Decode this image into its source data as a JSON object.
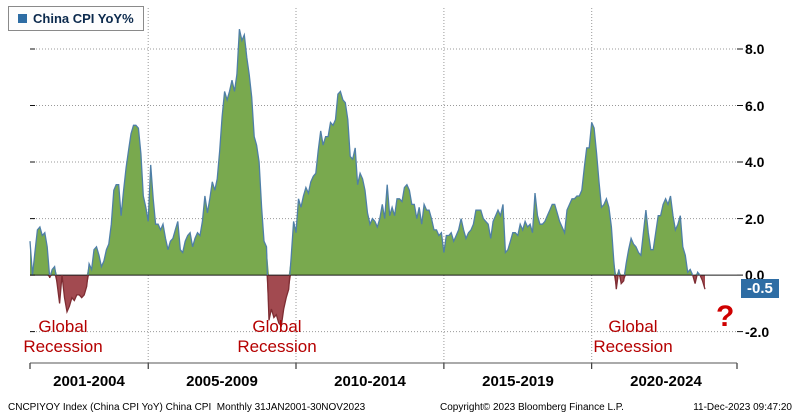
{
  "legend": {
    "label": "China CPI YoY%"
  },
  "annotations": {
    "global_recession": {
      "line1": "Global",
      "line2": "Recession"
    },
    "question_mark": "?"
  },
  "footer": {
    "left": "CNCPIYOY Index (China CPI YoY) China CPI  Monthly 31JAN2001-30NOV2023",
    "center": "Copyright© 2023 Bloomberg Finance L.P.",
    "right": "11-Dec-2023 09:47:20"
  },
  "chart_data": {
    "type": "area",
    "title": "China CPI YoY%",
    "xlabel": "",
    "ylabel": "",
    "grid": true,
    "legend_position": "top-left",
    "ylim": [
      -3.11,
      9.45
    ],
    "y_ticks": [
      8,
      6,
      4,
      2,
      0,
      -2
    ],
    "y_tick_labels": [
      "8.0",
      "6.0",
      "4.0",
      "2.0",
      "0.0",
      "-2.0"
    ],
    "x_domain": [
      "2001-01",
      "2024-12"
    ],
    "x_gridlines": [
      "2005-01",
      "2010-01",
      "2015-01",
      "2020-01"
    ],
    "x_axis_labels": [
      "2001-2004",
      "2005-2009",
      "2010-2014",
      "2015-2019",
      "2020-2024"
    ],
    "x_start": "2001-01",
    "x_end": "2023-11",
    "frequency": "monthly",
    "last_value": -0.5,
    "last_value_label": "-0.5",
    "colors": {
      "positive_fill": "#79a94e",
      "positive_line": "#4f7fa7",
      "negative_fill": "#a24a50",
      "negative_line": "#7e2d33",
      "accent_blue": "#2e6da4",
      "annotation_red": "#b50000"
    },
    "series": [
      {
        "name": "China CPI YoY%",
        "values": [
          1.2,
          0.0,
          0.8,
          1.6,
          1.7,
          1.4,
          1.5,
          1.0,
          -0.1,
          0.2,
          0.3,
          -0.3,
          -1.0,
          0.0,
          -0.8,
          -1.3,
          -1.1,
          -0.8,
          -0.9,
          -0.7,
          -0.7,
          -0.8,
          -0.7,
          -0.4,
          0.4,
          0.2,
          0.9,
          1.0,
          0.7,
          0.3,
          0.5,
          0.9,
          1.1,
          1.8,
          3.0,
          3.2,
          3.2,
          2.1,
          3.0,
          3.8,
          4.4,
          5.0,
          5.3,
          5.3,
          5.2,
          4.3,
          2.8,
          2.4,
          1.9,
          3.9,
          2.7,
          1.8,
          1.8,
          1.6,
          1.8,
          1.3,
          0.9,
          1.2,
          1.3,
          1.6,
          1.9,
          0.9,
          0.8,
          1.2,
          1.4,
          1.5,
          1.0,
          1.3,
          1.5,
          1.4,
          1.9,
          2.8,
          2.2,
          2.7,
          3.3,
          3.0,
          3.4,
          4.4,
          5.6,
          6.5,
          6.2,
          6.5,
          6.9,
          6.5,
          7.1,
          8.7,
          8.3,
          8.5,
          7.7,
          7.1,
          6.3,
          4.9,
          4.6,
          4.0,
          2.4,
          1.2,
          1.0,
          -1.6,
          -1.2,
          -1.5,
          -1.4,
          -1.7,
          -1.8,
          -1.2,
          -0.8,
          -0.5,
          0.6,
          1.9,
          1.5,
          2.7,
          2.4,
          2.8,
          3.1,
          2.9,
          3.3,
          3.5,
          3.6,
          4.4,
          5.1,
          4.6,
          4.9,
          4.9,
          5.4,
          5.3,
          5.5,
          6.4,
          6.5,
          6.2,
          6.1,
          5.5,
          4.2,
          4.1,
          4.5,
          3.2,
          3.6,
          3.4,
          3.0,
          2.2,
          1.8,
          2.0,
          1.9,
          1.7,
          2.0,
          2.5,
          2.0,
          3.2,
          2.1,
          2.4,
          2.1,
          2.7,
          2.7,
          2.6,
          3.1,
          3.2,
          3.0,
          2.5,
          2.5,
          2.0,
          2.4,
          1.8,
          2.5,
          2.3,
          2.3,
          2.0,
          1.6,
          1.6,
          1.4,
          1.5,
          0.8,
          1.4,
          1.4,
          1.5,
          1.2,
          1.4,
          1.6,
          2.0,
          1.6,
          1.3,
          1.5,
          1.6,
          1.8,
          2.3,
          2.3,
          2.3,
          2.0,
          1.9,
          1.8,
          1.3,
          1.9,
          2.1,
          2.3,
          2.1,
          2.5,
          0.8,
          0.9,
          1.2,
          1.5,
          1.5,
          1.4,
          1.8,
          1.6,
          1.9,
          1.7,
          1.8,
          1.5,
          2.9,
          2.1,
          1.8,
          1.8,
          1.9,
          2.1,
          2.3,
          2.5,
          2.5,
          2.2,
          1.9,
          1.7,
          1.5,
          2.3,
          2.5,
          2.7,
          2.7,
          2.8,
          2.8,
          3.0,
          3.8,
          4.5,
          4.5,
          5.4,
          5.2,
          4.3,
          3.3,
          2.4,
          2.5,
          2.7,
          2.4,
          1.7,
          0.5,
          -0.5,
          0.2,
          -0.3,
          -0.2,
          0.4,
          0.9,
          1.3,
          1.1,
          1.0,
          0.8,
          0.7,
          1.5,
          2.3,
          1.5,
          0.9,
          0.9,
          1.5,
          2.1,
          2.1,
          2.5,
          2.7,
          2.5,
          2.8,
          2.1,
          1.6,
          1.8,
          2.1,
          1.0,
          0.7,
          0.1,
          0.2,
          0.0,
          -0.3,
          0.1,
          0.0,
          -0.2,
          -0.5
        ]
      }
    ]
  }
}
